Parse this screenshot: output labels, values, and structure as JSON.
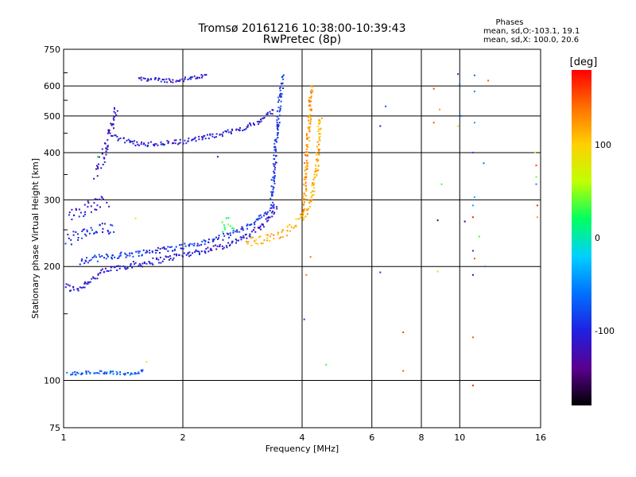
{
  "header": {
    "title_line1": "Tromsø 20161216 10:38:00-10:39:43",
    "title_line2": "RwPretec (8p)",
    "phases_title": "Phases",
    "phases_o": "mean, sd,O:-103.1, 19.1",
    "phases_x": "mean, sd,X: 100.0, 20.6"
  },
  "colorbar": {
    "unit_label": "[deg]",
    "range": [
      -180,
      180
    ],
    "ticks": [
      {
        "value": 100,
        "label": "100"
      },
      {
        "value": 0,
        "label": "0"
      },
      {
        "value": -100,
        "label": "-100"
      }
    ],
    "gradient_stops": [
      "#000000",
      "#5a0090",
      "#2020e0",
      "#0070ff",
      "#00d0ff",
      "#00ff60",
      "#c0ff00",
      "#ffd000",
      "#ff7000",
      "#ff0000"
    ]
  },
  "chart_data": {
    "type": "scatter",
    "title": "Tromsø 20161216 10:38:00-10:39:43",
    "subtitle": "RwPretec (8p)",
    "xlabel": "Frequency [MHz]",
    "ylabel": "Stationary phase Virtual Height [km]",
    "x_scale": "log",
    "y_scale": "log",
    "xlim": [
      1,
      16
    ],
    "ylim": [
      75,
      750
    ],
    "grid": true,
    "legend": "right colorbar",
    "x_ticks": [
      {
        "value": 1,
        "label": "1"
      },
      {
        "value": 2,
        "label": "2"
      },
      {
        "value": 4,
        "label": "4"
      },
      {
        "value": 6,
        "label": "6"
      },
      {
        "value": 8,
        "label": "8"
      },
      {
        "value": 10,
        "label": "10"
      },
      {
        "value": 16,
        "label": "16"
      }
    ],
    "y_ticks": [
      {
        "value": 75,
        "label": "75"
      },
      {
        "value": 100,
        "label": "100"
      },
      {
        "value": 200,
        "label": "200"
      },
      {
        "value": 300,
        "label": "300"
      },
      {
        "value": 400,
        "label": "400"
      },
      {
        "value": 500,
        "label": "500"
      },
      {
        "value": 600,
        "label": "600"
      },
      {
        "value": 750,
        "label": "750"
      }
    ],
    "x_grid": [
      1,
      2,
      4,
      6,
      8,
      10,
      16
    ],
    "y_grid": [
      100,
      200,
      300,
      400,
      500,
      600,
      750
    ],
    "traces": [
      {
        "points": [
          [
            1.01,
            178
          ],
          [
            1.05,
            174
          ],
          [
            1.1,
            176
          ],
          [
            1.15,
            182
          ],
          [
            1.22,
            190
          ],
          [
            1.3,
            196
          ],
          [
            1.4,
            200
          ],
          [
            1.55,
            203
          ],
          [
            1.7,
            207
          ],
          [
            1.9,
            212
          ],
          [
            2.1,
            217
          ],
          [
            2.3,
            221
          ],
          [
            2.6,
            229
          ],
          [
            2.9,
            240
          ],
          [
            3.1,
            252
          ],
          [
            3.3,
            268
          ],
          [
            3.45,
            290
          ]
        ],
        "phase": -108,
        "jitter": 4
      },
      {
        "points": [
          [
            1.1,
            205
          ],
          [
            1.2,
            210
          ],
          [
            1.3,
            213
          ],
          [
            1.45,
            215
          ],
          [
            1.6,
            218
          ],
          [
            1.8,
            222
          ],
          [
            2.0,
            226
          ],
          [
            2.3,
            232
          ],
          [
            2.6,
            242
          ],
          [
            2.9,
            255
          ],
          [
            3.2,
            272
          ],
          [
            3.4,
            295
          ]
        ],
        "phase": -90,
        "jitter": 4
      },
      {
        "points": [
          [
            1.02,
            235
          ],
          [
            1.08,
            240
          ],
          [
            1.15,
            245
          ],
          [
            1.25,
            250
          ],
          [
            1.35,
            255
          ]
        ],
        "phase": -95,
        "jitter": 10
      },
      {
        "points": [
          [
            1.03,
            275
          ],
          [
            1.1,
            282
          ],
          [
            1.2,
            292
          ],
          [
            1.3,
            300
          ]
        ],
        "phase": -110,
        "jitter": 12
      },
      {
        "points": [
          [
            1.2,
            360
          ],
          [
            1.25,
            380
          ],
          [
            1.3,
            430
          ],
          [
            1.33,
            480
          ],
          [
            1.36,
            520
          ]
        ],
        "phase": -115,
        "jitter": 20
      },
      {
        "points": [
          [
            1.35,
            440
          ],
          [
            1.45,
            428
          ],
          [
            1.6,
            420
          ],
          [
            1.8,
            424
          ],
          [
            2.0,
            428
          ],
          [
            2.2,
            436
          ],
          [
            2.5,
            448
          ],
          [
            2.8,
            462
          ],
          [
            3.1,
            480
          ],
          [
            3.4,
            520
          ]
        ],
        "phase": -105,
        "jitter": 6
      },
      {
        "points": [
          [
            3.35,
            300
          ],
          [
            3.4,
            360
          ],
          [
            3.45,
            440
          ],
          [
            3.5,
            520
          ],
          [
            3.55,
            600
          ],
          [
            3.58,
            640
          ]
        ],
        "phase": -88,
        "jitter": 12
      },
      {
        "points": [
          [
            2.9,
            232
          ],
          [
            3.1,
            234
          ],
          [
            3.3,
            238
          ],
          [
            3.5,
            242
          ],
          [
            3.7,
            250
          ],
          [
            3.9,
            262
          ],
          [
            4.1,
            280
          ],
          [
            4.25,
            310
          ],
          [
            4.35,
            360
          ],
          [
            4.4,
            430
          ],
          [
            4.45,
            500
          ]
        ],
        "phase": 112,
        "jitter": 6
      },
      {
        "points": [
          [
            4.0,
            270
          ],
          [
            4.05,
            300
          ],
          [
            4.08,
            340
          ],
          [
            4.1,
            380
          ],
          [
            4.15,
            450
          ],
          [
            4.2,
            560
          ],
          [
            4.25,
            610
          ]
        ],
        "phase": 125,
        "jitter": 10
      },
      {
        "points": [
          [
            2.5,
            256
          ],
          [
            2.6,
            260
          ],
          [
            2.7,
            262
          ]
        ],
        "phase": 30,
        "jitter": 10
      },
      {
        "points": [
          [
            1.55,
            630
          ],
          [
            1.7,
            622
          ],
          [
            1.9,
            620
          ],
          [
            2.1,
            628
          ],
          [
            2.3,
            640
          ]
        ],
        "phase": -108,
        "jitter": 8
      },
      {
        "points": [
          [
            1.03,
            104
          ],
          [
            1.15,
            105
          ],
          [
            1.3,
            105
          ],
          [
            1.45,
            104
          ],
          [
            1.6,
            106
          ]
        ],
        "phase": -70,
        "jitter": 1
      }
    ],
    "scattered_points": [
      {
        "x": 1.22,
        "y": 390,
        "phase": 20
      },
      {
        "x": 1.62,
        "y": 112,
        "phase": 60
      },
      {
        "x": 1.52,
        "y": 268,
        "phase": 60
      },
      {
        "x": 2.45,
        "y": 390,
        "phase": -110
      },
      {
        "x": 4.05,
        "y": 145,
        "phase": -80
      },
      {
        "x": 4.2,
        "y": 212,
        "phase": 140
      },
      {
        "x": 4.1,
        "y": 190,
        "phase": 140
      },
      {
        "x": 4.6,
        "y": 110,
        "phase": 30
      },
      {
        "x": 6.3,
        "y": 470,
        "phase": -110
      },
      {
        "x": 6.3,
        "y": 193,
        "phase": -90
      },
      {
        "x": 6.5,
        "y": 530,
        "phase": -70
      },
      {
        "x": 7.2,
        "y": 134,
        "phase": 160
      },
      {
        "x": 7.2,
        "y": 106,
        "phase": 150
      },
      {
        "x": 8.6,
        "y": 590,
        "phase": 160
      },
      {
        "x": 8.6,
        "y": 480,
        "phase": 150
      },
      {
        "x": 8.9,
        "y": 520,
        "phase": 120
      },
      {
        "x": 9.0,
        "y": 330,
        "phase": 30
      },
      {
        "x": 8.8,
        "y": 265,
        "phase": -150
      },
      {
        "x": 8.8,
        "y": 194,
        "phase": 100
      },
      {
        "x": 9.9,
        "y": 645,
        "phase": -90
      },
      {
        "x": 10.0,
        "y": 605,
        "phase": -60
      },
      {
        "x": 10.1,
        "y": 500,
        "phase": -60
      },
      {
        "x": 9.9,
        "y": 470,
        "phase": 80
      },
      {
        "x": 10.3,
        "y": 263,
        "phase": -150
      },
      {
        "x": 10.9,
        "y": 640,
        "phase": -60
      },
      {
        "x": 10.9,
        "y": 580,
        "phase": -50
      },
      {
        "x": 10.9,
        "y": 480,
        "phase": -40
      },
      {
        "x": 10.8,
        "y": 400,
        "phase": -80
      },
      {
        "x": 10.9,
        "y": 305,
        "phase": -30
      },
      {
        "x": 10.8,
        "y": 290,
        "phase": -40
      },
      {
        "x": 10.8,
        "y": 270,
        "phase": 170
      },
      {
        "x": 10.8,
        "y": 220,
        "phase": -100
      },
      {
        "x": 10.9,
        "y": 210,
        "phase": 150
      },
      {
        "x": 10.8,
        "y": 190,
        "phase": -140
      },
      {
        "x": 10.8,
        "y": 130,
        "phase": 150
      },
      {
        "x": 10.8,
        "y": 97,
        "phase": 170
      },
      {
        "x": 11.2,
        "y": 240,
        "phase": 30
      },
      {
        "x": 11.5,
        "y": 375,
        "phase": -60
      },
      {
        "x": 11.6,
        "y": 200,
        "phase": -60
      },
      {
        "x": 11.8,
        "y": 620,
        "phase": 150
      },
      {
        "x": 15.5,
        "y": 400,
        "phase": 60
      },
      {
        "x": 15.6,
        "y": 370,
        "phase": 160
      },
      {
        "x": 15.6,
        "y": 345,
        "phase": 40
      },
      {
        "x": 15.6,
        "y": 330,
        "phase": -50
      },
      {
        "x": 15.7,
        "y": 290,
        "phase": 170
      },
      {
        "x": 15.7,
        "y": 270,
        "phase": 120
      }
    ]
  }
}
